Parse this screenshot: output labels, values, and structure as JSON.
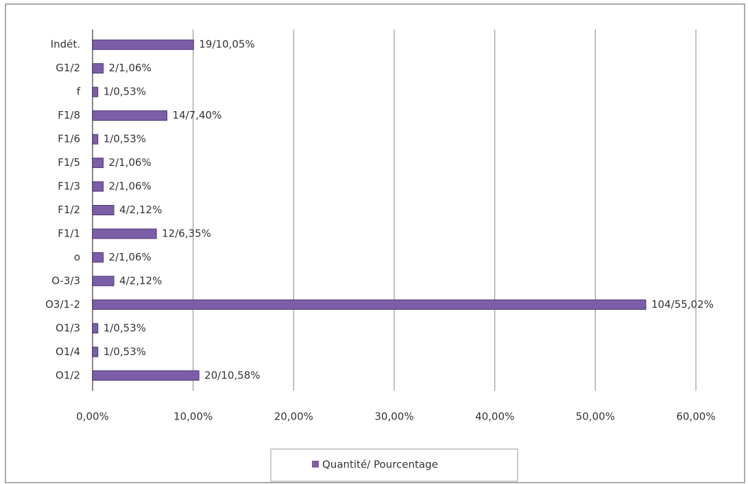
{
  "chart_data": {
    "type": "barh",
    "categories": [
      "O1/2",
      "O1/4",
      "O1/3",
      "O3/1-2",
      "O-3/3",
      "o",
      "F1/1",
      "F1/2",
      "F1/3",
      "F1/5",
      "F1/6",
      "F1/8",
      "f",
      "G1/2",
      "Indét."
    ],
    "series": [
      {
        "name": "Quantité/ Pourcentage",
        "color": "#7b5ea7",
        "values": [
          10.58,
          0.53,
          0.53,
          55.02,
          2.12,
          1.06,
          6.35,
          2.12,
          1.06,
          1.06,
          0.53,
          7.4,
          0.53,
          1.06,
          10.05
        ],
        "value_labels": [
          "20/10,58%",
          "1/0,53%",
          "1/0,53%",
          "104/55,02%",
          "4/2,12%",
          "2/1,06%",
          "12/6,35%",
          "4/2,12%",
          "2/1,06%",
          "2/1,06%",
          "1/0,53%",
          "14/7,40%",
          "1/0,53%",
          "2/1,06%",
          "19/10,05%"
        ]
      }
    ],
    "xlim": [
      0,
      60
    ],
    "xticks": [
      {
        "value": 0,
        "label": "0,00%"
      },
      {
        "value": 10,
        "label": "10,00%"
      },
      {
        "value": 20,
        "label": "20,00%"
      },
      {
        "value": 30,
        "label": "30,00%"
      },
      {
        "value": 40,
        "label": "40,00%"
      },
      {
        "value": 50,
        "label": "50,00%"
      },
      {
        "value": 60,
        "label": "60,00%"
      }
    ],
    "grid": true,
    "legend": "bottom"
  }
}
